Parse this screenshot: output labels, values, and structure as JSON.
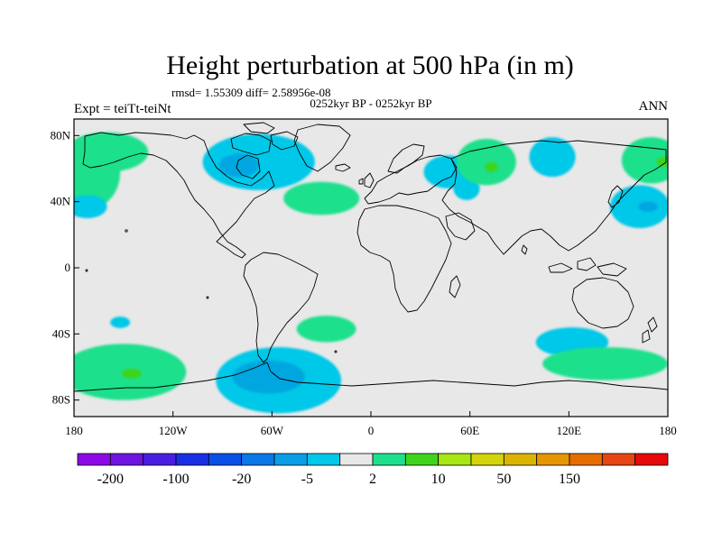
{
  "figure": {
    "title": "Height perturbation at 500 hPa (in m)",
    "stats_line": "rmsd= 1.55309 diff= 2.58956e-08",
    "period_line": "0252kyr BP - 0252kyr BP",
    "experiment_label": "Expt = teiTt-teiNt",
    "season_label": "ANN"
  },
  "map": {
    "projection": "cylindrical-equidistant",
    "lon_range": [
      -180,
      180
    ],
    "lat_range": [
      -90,
      90
    ],
    "background_color": "#e8e8e8",
    "lat_ticks": [
      {
        "lat": 80,
        "label": "80N"
      },
      {
        "lat": 40,
        "label": "40N"
      },
      {
        "lat": 0,
        "label": "0"
      },
      {
        "lat": -40,
        "label": "40S"
      },
      {
        "lat": -80,
        "label": "80S"
      }
    ],
    "lon_ticks": [
      {
        "lon": -180,
        "label": "180"
      },
      {
        "lon": -120,
        "label": "120W"
      },
      {
        "lon": -60,
        "label": "60W"
      },
      {
        "lon": 0,
        "label": "0"
      },
      {
        "lon": 60,
        "label": "60E"
      },
      {
        "lon": 120,
        "label": "120E"
      },
      {
        "lon": 180,
        "label": "180"
      }
    ],
    "anomaly_regions": [
      {
        "name": "north-pacific-positive",
        "sign": "positive",
        "color": "#1ee08c",
        "lon": -170,
        "lat": 58,
        "rlon": 18,
        "rlat": 22
      },
      {
        "name": "dateline-northeast-positive",
        "sign": "positive",
        "color": "#1ee08c",
        "lon": -160,
        "lat": 70,
        "rlon": 25,
        "rlat": 12
      },
      {
        "name": "north-pacific-negative",
        "sign": "negative",
        "color": "#00c8e8",
        "lon": -172,
        "lat": 37,
        "rlon": 12,
        "rlat": 7
      },
      {
        "name": "canada-negative",
        "sign": "negative",
        "color": "#00c8e8",
        "lon": -68,
        "lat": 64,
        "rlon": 34,
        "rlat": 17
      },
      {
        "name": "canada-core-negative",
        "sign": "negative",
        "color": "#00a6e0",
        "lon": -80,
        "lat": 62,
        "rlon": 12,
        "rlat": 7
      },
      {
        "name": "north-atlantic-positive",
        "sign": "positive",
        "color": "#1ee08c",
        "lon": -30,
        "lat": 42,
        "rlon": 23,
        "rlat": 10
      },
      {
        "name": "eurasia-negative",
        "sign": "negative",
        "color": "#00c8e8",
        "lon": 47,
        "lat": 58,
        "rlon": 15,
        "rlat": 10
      },
      {
        "name": "eurasia-negative-tail",
        "sign": "negative",
        "color": "#00c8e8",
        "lon": 58,
        "lat": 48,
        "rlon": 8,
        "rlat": 7
      },
      {
        "name": "siberia-positive",
        "sign": "positive",
        "color": "#1ee08c",
        "lon": 70,
        "lat": 64,
        "rlon": 18,
        "rlat": 14
      },
      {
        "name": "siberia-core-positive",
        "sign": "positive",
        "color": "#3ed41e",
        "lon": 73,
        "lat": 61,
        "rlon": 4,
        "rlat": 3
      },
      {
        "name": "east-siberia-negative",
        "sign": "negative",
        "color": "#00c8e8",
        "lon": 110,
        "lat": 67,
        "rlon": 14,
        "rlat": 12
      },
      {
        "name": "far-east-positive",
        "sign": "positive",
        "color": "#1ee08c",
        "lon": 170,
        "lat": 65,
        "rlon": 18,
        "rlat": 14
      },
      {
        "name": "far-east-core-positive",
        "sign": "positive",
        "color": "#3ed41e",
        "lon": 178,
        "lat": 64,
        "rlon": 5,
        "rlat": 3
      },
      {
        "name": "west-pacific-negative",
        "sign": "negative",
        "color": "#00c8e8",
        "lon": 163,
        "lat": 37,
        "rlon": 18,
        "rlat": 13
      },
      {
        "name": "west-pacific-core-negative",
        "sign": "negative",
        "color": "#00a6e0",
        "lon": 168,
        "lat": 37,
        "rlon": 6,
        "rlat": 3
      },
      {
        "name": "south-pacific-negative-small",
        "sign": "negative",
        "color": "#00c8e8",
        "lon": -152,
        "lat": -33,
        "rlon": 6,
        "rlat": 3.5
      },
      {
        "name": "south-atlantic-positive",
        "sign": "positive",
        "color": "#1ee08c",
        "lon": -27,
        "lat": -37,
        "rlon": 18,
        "rlat": 8
      },
      {
        "name": "southern-ocean-positive",
        "sign": "positive",
        "color": "#1ee08c",
        "lon": -150,
        "lat": -63,
        "rlon": 38,
        "rlat": 17
      },
      {
        "name": "southern-ocean-core-positive",
        "sign": "positive",
        "color": "#3ed41e",
        "lon": -145,
        "lat": -64,
        "rlon": 6,
        "rlat": 3
      },
      {
        "name": "drake-passage-negative",
        "sign": "negative",
        "color": "#00c8e8",
        "lon": -56,
        "lat": -68,
        "rlon": 38,
        "rlat": 20
      },
      {
        "name": "drake-passage-core-negative",
        "sign": "negative",
        "color": "#00a6e0",
        "lon": -62,
        "lat": -66,
        "rlon": 22,
        "rlat": 10
      },
      {
        "name": "south-indian-negative",
        "sign": "negative",
        "color": "#00c8e8",
        "lon": 122,
        "lat": -45,
        "rlon": 22,
        "rlat": 9
      },
      {
        "name": "southern-ocean-east-positive",
        "sign": "positive",
        "color": "#1ee08c",
        "lon": 142,
        "lat": -58,
        "rlon": 38,
        "rlat": 10
      }
    ]
  },
  "colorbar": {
    "levels": [
      "-200",
      "-100",
      "-20",
      "-5",
      "2",
      "10",
      "50",
      "150"
    ],
    "colors": [
      "#8c0ae6",
      "#6e14e0",
      "#4a1ee0",
      "#1a2ee6",
      "#0a50e6",
      "#0a78e6",
      "#0a9ee6",
      "#00c8e8",
      "#e8e8e8",
      "#1ee08c",
      "#3ed41e",
      "#a8e614",
      "#d4d40a",
      "#dcb400",
      "#e69600",
      "#e66e00",
      "#e64614",
      "#e60a0a"
    ]
  }
}
